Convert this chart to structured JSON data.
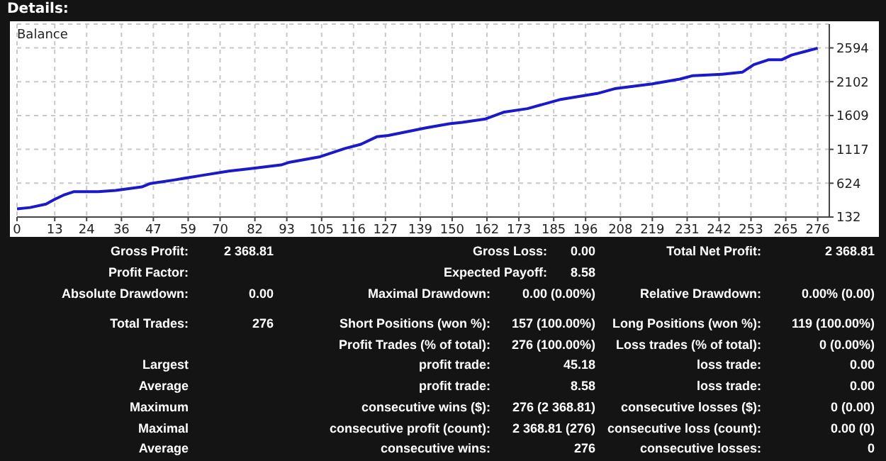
{
  "chart_data": [
    {
      "type": "line",
      "title": "Details:",
      "annotations": [
        "Balance"
      ],
      "x": [
        0,
        4.5,
        10,
        13,
        16,
        19.5,
        28,
        34,
        43,
        46,
        54,
        64,
        73,
        81,
        91,
        94,
        104.5,
        113,
        118.5,
        124,
        128,
        141,
        149,
        153.5,
        161.5,
        168,
        176,
        187,
        200,
        206,
        219,
        228.5,
        233,
        243,
        250,
        254,
        259,
        263.5,
        267,
        271.5,
        276
      ],
      "series": [
        {
          "color": "#1a1ac8",
          "values": [
            250,
            270,
            320,
            390,
            450,
            500,
            500,
            520,
            570,
            620,
            670,
            740,
            800,
            840,
            890,
            930,
            1010,
            1130,
            1190,
            1300,
            1320,
            1430,
            1490,
            1510,
            1560,
            1660,
            1710,
            1840,
            1930,
            2000,
            2070,
            2140,
            2190,
            2210,
            2240,
            2350,
            2420,
            2420,
            2490,
            2540,
            2590
          ]
        }
      ],
      "xlim": [
        0,
        280
      ],
      "xticks": [
        0,
        13,
        24,
        36,
        47,
        59,
        70,
        82,
        93,
        105,
        116,
        127,
        139,
        150,
        162,
        173,
        185,
        196,
        208,
        219,
        231,
        242,
        253,
        265,
        276
      ],
      "ylim": [
        132,
        2940
      ],
      "yticks": [
        132,
        624,
        1117,
        1609,
        2102,
        2594
      ],
      "grid": true,
      "line_style": "solid",
      "marker": "none"
    },
    {
      "type": "other",
      "annotations": [
        "Gross Profit:",
        "2 368.81",
        "Gross Loss:",
        "0.00",
        "Total Net Profit:",
        "2 368.81",
        "Profit Factor:",
        "Expected Payoff:",
        "8.58",
        "Absolute Drawdown:",
        "0.00",
        "Maximal Drawdown:",
        "0.00 (0.00%)",
        "Relative Drawdown:",
        "0.00% (0.00)",
        "Total Trades:",
        "276",
        "Short Positions (won %):",
        "157 (100.00%)",
        "Long Positions (won %):",
        "119 (100.00%)",
        "Profit Trades (% of total):",
        "276 (100.00%)",
        "Loss trades (% of total):",
        "0 (0.00%)",
        "Largest",
        "profit trade:",
        "45.18",
        "loss trade:",
        "0.00",
        "Average",
        "profit trade:",
        "8.58",
        "loss trade:",
        "0.00",
        "Maximum",
        "consecutive wins ($):",
        "276 (2 368.81)",
        "consecutive losses ($):",
        "0 (0.00)",
        "Maximal",
        "consecutive profit (count):",
        "2 368.81 (276)",
        "consecutive loss (count):",
        "0.00 (0)",
        "Average",
        "consecutive wins:",
        "276",
        "consecutive losses:",
        "0"
      ]
    }
  ]
}
